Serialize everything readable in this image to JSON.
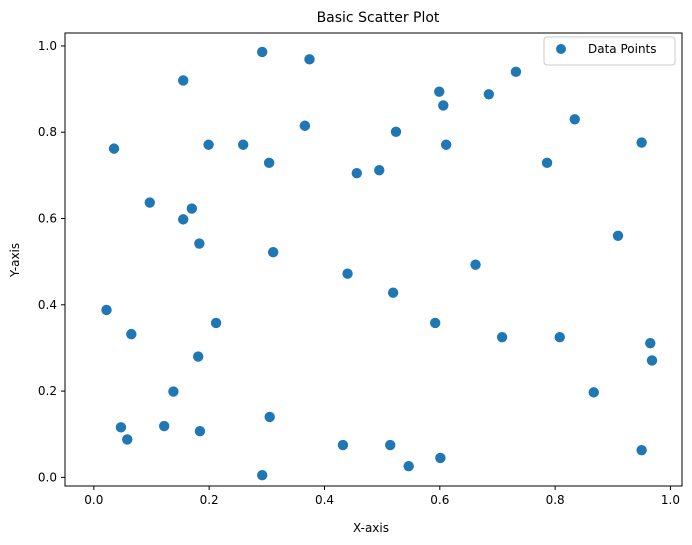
{
  "chart_data": {
    "type": "scatter",
    "title": "Basic Scatter Plot",
    "xlabel": "X-axis",
    "ylabel": "Y-axis",
    "xlim": [
      -0.05,
      1.02
    ],
    "ylim": [
      -0.02,
      1.03
    ],
    "xticks": [
      "0.0",
      "0.2",
      "0.4",
      "0.6",
      "0.8",
      "1.0"
    ],
    "yticks": [
      "0.0",
      "0.2",
      "0.4",
      "0.6",
      "0.8",
      "1.0"
    ],
    "grid": false,
    "legend_position": "top-right",
    "color": "#1f77b4",
    "series": [
      {
        "name": "Data Points",
        "points": [
          [
            0.022,
            0.388
          ],
          [
            0.035,
            0.762
          ],
          [
            0.047,
            0.116
          ],
          [
            0.058,
            0.088
          ],
          [
            0.065,
            0.332
          ],
          [
            0.097,
            0.637
          ],
          [
            0.122,
            0.119
          ],
          [
            0.138,
            0.199
          ],
          [
            0.155,
            0.92
          ],
          [
            0.155,
            0.598
          ],
          [
            0.17,
            0.623
          ],
          [
            0.181,
            0.28
          ],
          [
            0.183,
            0.542
          ],
          [
            0.184,
            0.107
          ],
          [
            0.199,
            0.771
          ],
          [
            0.212,
            0.358
          ],
          [
            0.259,
            0.771
          ],
          [
            0.292,
            0.986
          ],
          [
            0.292,
            0.005
          ],
          [
            0.304,
            0.729
          ],
          [
            0.305,
            0.14
          ],
          [
            0.311,
            0.522
          ],
          [
            0.366,
            0.815
          ],
          [
            0.374,
            0.969
          ],
          [
            0.432,
            0.075
          ],
          [
            0.44,
            0.472
          ],
          [
            0.456,
            0.705
          ],
          [
            0.495,
            0.712
          ],
          [
            0.514,
            0.075
          ],
          [
            0.519,
            0.428
          ],
          [
            0.524,
            0.801
          ],
          [
            0.546,
            0.026
          ],
          [
            0.592,
            0.358
          ],
          [
            0.599,
            0.894
          ],
          [
            0.601,
            0.045
          ],
          [
            0.606,
            0.862
          ],
          [
            0.611,
            0.771
          ],
          [
            0.662,
            0.493
          ],
          [
            0.685,
            0.888
          ],
          [
            0.708,
            0.325
          ],
          [
            0.732,
            0.94
          ],
          [
            0.786,
            0.729
          ],
          [
            0.808,
            0.325
          ],
          [
            0.834,
            0.83
          ],
          [
            0.867,
            0.197
          ],
          [
            0.909,
            0.56
          ],
          [
            0.95,
            0.776
          ],
          [
            0.95,
            0.063
          ],
          [
            0.965,
            0.311
          ],
          [
            0.968,
            0.271
          ]
        ]
      }
    ]
  }
}
